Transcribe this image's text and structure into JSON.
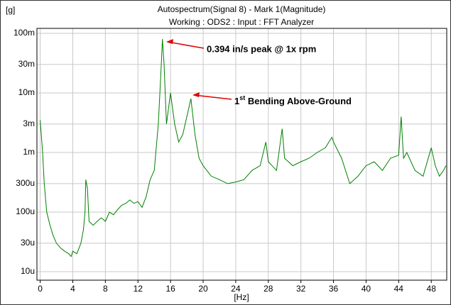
{
  "chart_data": {
    "type": "line",
    "title": "Autospectrum(Signal 8) - Mark 1(Magnitude)",
    "subtitle": "Working : ODS2 : Input : FFT Analyzer",
    "x_label": "[Hz]",
    "y_label": "[g]",
    "log_y": true,
    "grid": true,
    "xlim": [
      -0.4,
      49.9
    ],
    "ylim": [
      7.2e-06,
      0.121
    ],
    "xticks": [
      0,
      4,
      8,
      12,
      16,
      20,
      24,
      28,
      32,
      36,
      40,
      44,
      48
    ],
    "yticks": [
      {
        "value": 1e-05,
        "label": "10u"
      },
      {
        "value": 3e-05,
        "label": "30u"
      },
      {
        "value": 0.0001,
        "label": "100u"
      },
      {
        "value": 0.0003,
        "label": "300u"
      },
      {
        "value": 0.001,
        "label": "1m"
      },
      {
        "value": 0.003,
        "label": "3m"
      },
      {
        "value": 0.01,
        "label": "10m"
      },
      {
        "value": 0.03,
        "label": "30m"
      },
      {
        "value": 0.1,
        "label": "100m"
      }
    ],
    "series": [
      {
        "color": "#008000",
        "x": [
          0,
          0.3,
          0.5,
          0.8,
          1.2,
          1.6,
          2,
          2.5,
          3,
          3.5,
          3.8,
          4,
          4.5,
          5,
          5.3,
          5.5,
          5.6,
          5.8,
          6,
          6.5,
          7,
          7.5,
          8,
          8.5,
          9,
          9.5,
          10,
          10.5,
          11,
          11.5,
          12,
          12.5,
          13,
          13.5,
          14,
          14.5,
          14.8,
          15,
          15.2,
          15.5,
          16,
          16.5,
          17,
          17.5,
          18,
          18.5,
          19,
          19.5,
          20,
          21,
          22,
          23,
          24,
          25,
          26,
          27,
          27.7,
          28,
          29,
          29.7,
          30,
          31,
          32,
          33,
          34,
          35,
          35.8,
          36,
          37,
          38,
          39,
          40,
          41,
          42,
          43,
          44,
          44.3,
          44.6,
          45,
          46,
          47,
          48,
          48.5,
          49,
          49.5,
          49.8
        ],
        "values": [
          0.0035,
          0.001,
          0.0003,
          0.0001,
          6e-05,
          4e-05,
          3e-05,
          2.5e-05,
          2.2e-05,
          2e-05,
          1.8e-05,
          2.2e-05,
          2e-05,
          3e-05,
          5e-05,
          0.0001,
          0.00035,
          0.00025,
          7e-05,
          6e-05,
          7e-05,
          8e-05,
          7e-05,
          0.0001,
          9e-05,
          0.00011,
          0.00013,
          0.00014,
          0.00016,
          0.00014,
          0.00015,
          0.00012,
          0.00018,
          0.00035,
          0.0005,
          0.003,
          0.02,
          0.08,
          0.03,
          0.003,
          0.01,
          0.003,
          0.0015,
          0.002,
          0.004,
          0.008,
          0.002,
          0.0008,
          0.0006,
          0.0004,
          0.00035,
          0.0003,
          0.00032,
          0.00035,
          0.0005,
          0.0006,
          0.0015,
          0.0007,
          0.0005,
          0.0025,
          0.0008,
          0.0006,
          0.0007,
          0.0008,
          0.001,
          0.0012,
          0.0018,
          0.0015,
          0.0008,
          0.0003,
          0.0004,
          0.0006,
          0.0007,
          0.0005,
          0.0008,
          0.0009,
          0.004,
          0.0008,
          0.001,
          0.0005,
          0.0004,
          0.0012,
          0.0006,
          0.0004,
          0.0005,
          0.0006
        ]
      }
    ],
    "annotations": [
      {
        "text": "0.394 in/s peak @ 1x rpm"
      },
      {
        "base": "1",
        "sup": "st",
        "rest": " Bending Above-Ground"
      }
    ]
  }
}
